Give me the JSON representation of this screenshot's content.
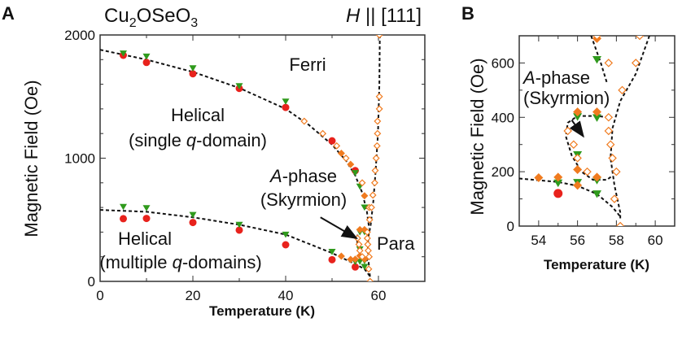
{
  "chart_data": [
    {
      "type": "scatter",
      "panel_label": "A",
      "title": "Cu₂OSeO₃",
      "title_parts": {
        "base": "Cu",
        "sub1": "2",
        "mid": "OSeO",
        "sub2": "3"
      },
      "field_direction": {
        "italic": "H",
        "rest": " || [111]"
      },
      "xlabel": "Temperature (K)",
      "ylabel": "Magnetic Field (Oe)",
      "xlim": [
        0,
        70
      ],
      "ylim": [
        0,
        2000
      ],
      "xticks": [
        0,
        20,
        40,
        60
      ],
      "yticks": [
        0,
        1000,
        2000
      ],
      "region_labels": {
        "ferri": "Ferri",
        "helical_single_1": "Helical",
        "helical_single_2a": "(single ",
        "helical_single_2b": "q",
        "helical_single_2c": "-domain)",
        "aphase_1a": "A",
        "aphase_1b": "-phase",
        "aphase_2": "(Skyrmion)",
        "helical_multi_1": "Helical",
        "helical_multi_2a": "(multiple ",
        "helical_multi_2b": "q",
        "helical_multi_2c": "-domains)",
        "para": "Para"
      },
      "series": [
        {
          "marker": "circle",
          "color": "#e8221c",
          "points": [
            [
              5,
              1835
            ],
            [
              10,
              1777
            ],
            [
              20,
              1685
            ],
            [
              30,
              1566
            ],
            [
              40,
              1412
            ],
            [
              50,
              1141
            ],
            [
              55,
              899
            ],
            [
              5,
              509
            ],
            [
              10,
              511
            ],
            [
              20,
              478
            ],
            [
              30,
              416
            ],
            [
              40,
              297
            ],
            [
              50,
              176
            ],
            [
              55,
              117
            ]
          ]
        },
        {
          "marker": "triangle-down",
          "color": "#2f9a1c",
          "points": [
            [
              5,
              1850
            ],
            [
              10,
              1825
            ],
            [
              20,
              1730
            ],
            [
              30,
              1585
            ],
            [
              40,
              1460
            ],
            [
              55,
              880
            ],
            [
              56,
              770
            ],
            [
              57,
              600
            ],
            [
              5,
              605
            ],
            [
              10,
              595
            ],
            [
              20,
              540
            ],
            [
              30,
              460
            ],
            [
              40,
              380
            ],
            [
              50,
              240
            ],
            [
              56,
              400
            ],
            [
              57,
              400
            ],
            [
              56,
              260
            ],
            [
              56,
              160
            ],
            [
              57,
              165
            ],
            [
              57,
              118
            ],
            [
              55,
              158
            ]
          ]
        },
        {
          "marker": "diamond-filled",
          "color": "#f07b1f",
          "points": [
            [
              52,
              1040
            ],
            [
              54,
              950
            ],
            [
              57,
              695
            ],
            [
              52,
              205
            ],
            [
              54,
              178
            ],
            [
              55,
              180
            ],
            [
              56,
              208
            ],
            [
              56,
              420
            ],
            [
              57,
              420
            ],
            [
              57,
              180
            ]
          ]
        },
        {
          "marker": "diamond-open",
          "color": "#f07b1f",
          "points": [
            [
              44,
              1300
            ],
            [
              48,
              1200
            ],
            [
              51,
              1100
            ],
            [
              53,
              1000
            ],
            [
              56.5,
              800
            ],
            [
              58,
              600
            ],
            [
              60.2,
              2000
            ],
            [
              60.2,
              1500
            ],
            [
              60.2,
              1400
            ],
            [
              59.8,
              1300
            ],
            [
              59.8,
              1200
            ],
            [
              59.7,
              1100
            ],
            [
              59.5,
              1000
            ],
            [
              59.3,
              900
            ],
            [
              59.2,
              800
            ],
            [
              58.8,
              700
            ],
            [
              58.5,
              600
            ],
            [
              58.1,
              500
            ],
            [
              57.6,
              400
            ],
            [
              57.6,
              350
            ],
            [
              57.7,
              300
            ],
            [
              57.8,
              250
            ],
            [
              58,
              200
            ],
            [
              57.9,
              100
            ],
            [
              58.2,
              0
            ],
            [
              55.5,
              350
            ],
            [
              55.8,
              300
            ],
            [
              56,
              250
            ],
            [
              56.5,
              200
            ]
          ]
        }
      ],
      "boundaries": [
        [
          [
            0,
            1880
          ],
          [
            10,
            1800
          ],
          [
            20,
            1700
          ],
          [
            30,
            1570
          ],
          [
            40,
            1400
          ],
          [
            45,
            1270
          ],
          [
            50,
            1110
          ],
          [
            53,
            980
          ],
          [
            55,
            860
          ],
          [
            56.5,
            720
          ],
          [
            57.5,
            570
          ],
          [
            58,
            430
          ]
        ],
        [
          [
            0,
            580
          ],
          [
            10,
            565
          ],
          [
            20,
            520
          ],
          [
            30,
            460
          ],
          [
            40,
            380
          ],
          [
            50,
            230
          ],
          [
            55,
            140
          ],
          [
            57,
            100
          ],
          [
            58.2,
            40
          ]
        ],
        [
          [
            60.3,
            2000
          ],
          [
            60.2,
            1600
          ],
          [
            59.9,
            1200
          ],
          [
            59.4,
            900
          ],
          [
            58.9,
            650
          ],
          [
            58.3,
            450
          ],
          [
            57.8,
            360
          ],
          [
            57.7,
            250
          ],
          [
            57.9,
            150
          ],
          [
            58.2,
            30
          ]
        ],
        [
          [
            57.6,
            400
          ],
          [
            56,
            405
          ],
          [
            55.5,
            380
          ],
          [
            55.4,
            330
          ],
          [
            55.7,
            260
          ],
          [
            56.2,
            200
          ],
          [
            56.8,
            170
          ],
          [
            57.5,
            170
          ],
          [
            57.8,
            190
          ]
        ]
      ],
      "arrow": {
        "from": [
          47.5,
          520
        ],
        "to": [
          55.3,
          350
        ]
      }
    },
    {
      "type": "scatter",
      "panel_label": "B",
      "xlabel": "Temperature (K)",
      "ylabel": "Magnetic Field (Oe)",
      "xlim": [
        53,
        61
      ],
      "ylim": [
        0,
        700
      ],
      "xticks": [
        54,
        56,
        58,
        60
      ],
      "yticks": [
        0,
        200,
        400,
        600
      ],
      "region_labels": {
        "aphase_1a": "A",
        "aphase_1b": "-phase",
        "aphase_2": "(Skyrmion)"
      },
      "series": [
        {
          "marker": "circle",
          "color": "#e8221c",
          "points": [
            [
              55,
              120
            ]
          ]
        },
        {
          "marker": "triangle-down",
          "color": "#2f9a1c",
          "points": [
            [
              55,
              158
            ],
            [
              56,
              160
            ],
            [
              56,
              262
            ],
            [
              56,
              402
            ],
            [
              57,
              398
            ],
            [
              57,
              168
            ],
            [
              57,
              118
            ],
            [
              57,
              612
            ]
          ]
        },
        {
          "marker": "diamond-filled",
          "color": "#f07b1f",
          "points": [
            [
              54,
              178
            ],
            [
              55,
              180
            ],
            [
              56,
              208
            ],
            [
              56,
              420
            ],
            [
              57,
              420
            ],
            [
              57,
              180
            ],
            [
              57,
              690
            ],
            [
              56,
              150
            ]
          ]
        },
        {
          "marker": "diamond-open",
          "color": "#f07b1f",
          "points": [
            [
              57,
              700
            ],
            [
              57.6,
              600
            ],
            [
              58.3,
              500
            ],
            [
              59,
              600
            ],
            [
              59.2,
              700
            ],
            [
              57.6,
              400
            ],
            [
              57.6,
              350
            ],
            [
              57.7,
              300
            ],
            [
              57.8,
              250
            ],
            [
              58,
              200
            ],
            [
              57.9,
              100
            ],
            [
              58.2,
              0
            ],
            [
              55.5,
              350
            ],
            [
              55.8,
              300
            ],
            [
              56,
              250
            ],
            [
              56.5,
              200
            ]
          ]
        }
      ],
      "boundaries": [
        [
          [
            59.7,
            700
          ],
          [
            59,
            560
          ],
          [
            58.2,
            460
          ],
          [
            57.8,
            360
          ],
          [
            57.7,
            250
          ],
          [
            57.9,
            150
          ],
          [
            58.2,
            50
          ],
          [
            58.2,
            20
          ]
        ],
        [
          [
            56.7,
            700
          ],
          [
            57.2,
            600
          ],
          [
            57.5,
            530
          ]
        ],
        [
          [
            53,
            175
          ],
          [
            55,
            162
          ],
          [
            56,
            148
          ],
          [
            57,
            118
          ],
          [
            57.8,
            70
          ],
          [
            58.2,
            35
          ]
        ],
        [
          [
            57.6,
            400
          ],
          [
            57,
            405
          ],
          [
            56,
            405
          ],
          [
            55.5,
            380
          ],
          [
            55.4,
            330
          ],
          [
            55.7,
            260
          ],
          [
            56.2,
            200
          ],
          [
            56.8,
            170
          ],
          [
            57.5,
            170
          ],
          [
            57.8,
            185
          ]
        ]
      ],
      "arrow": {
        "from": [
          55.7,
          390
        ],
        "to": [
          56.3,
          330
        ]
      }
    }
  ]
}
